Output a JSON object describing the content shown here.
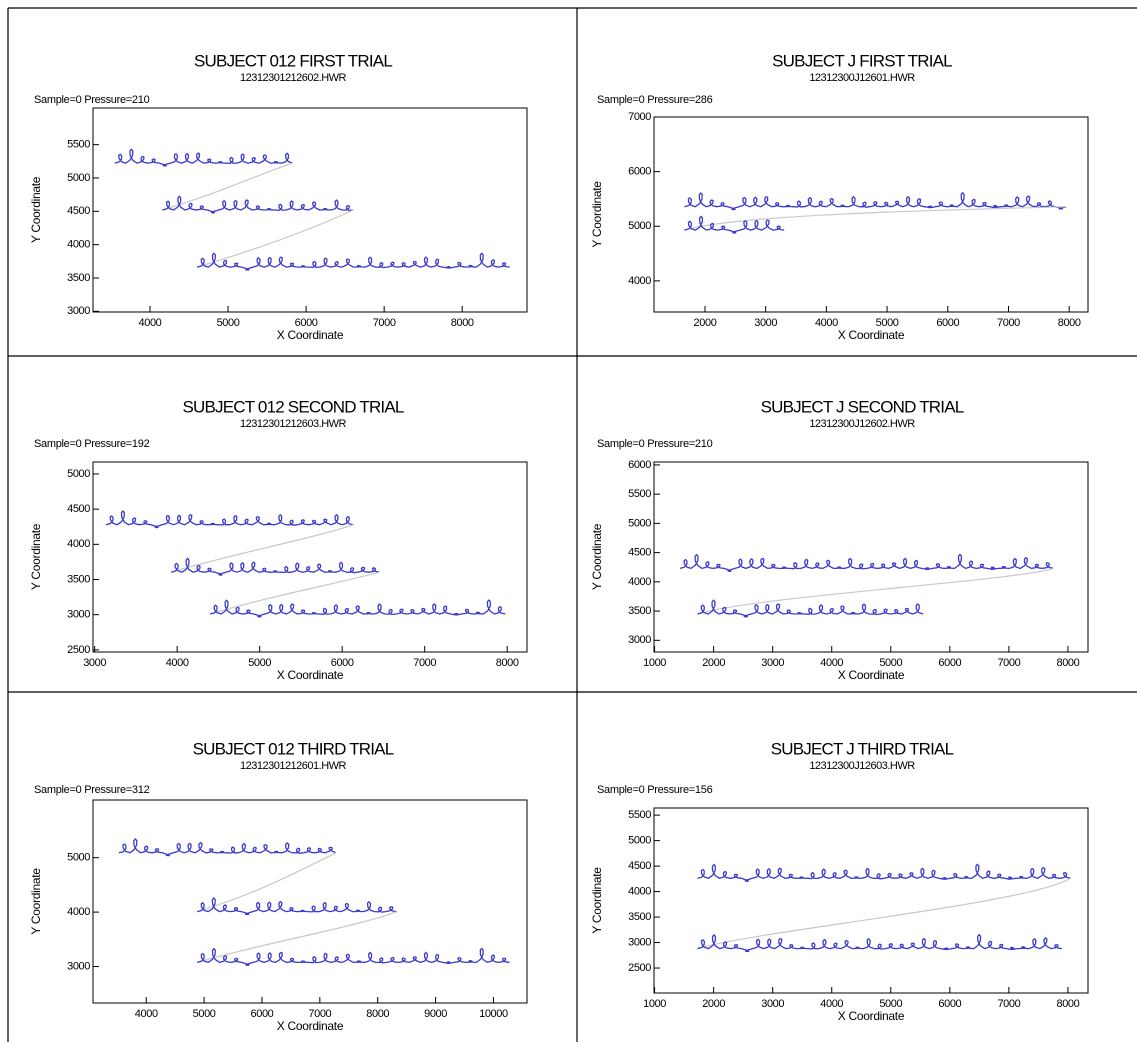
{
  "chart_data": [
    {
      "type": "line",
      "title": "SUBJECT 012 FIRST TRIAL",
      "subtitle": "12312301212602.HWR",
      "annotation": "Sample=0 Pressure=210",
      "x_label": "X Coordinate",
      "y_label": "Y Coordinate",
      "xlim": [
        3270,
        8830
      ],
      "ylim": [
        2990,
        6050
      ],
      "xticks": [
        4000,
        5000,
        6000,
        7000,
        8000
      ],
      "yticks": [
        3000,
        3500,
        4000,
        4500,
        5000,
        5500
      ],
      "color": "#3a3acc"
    },
    {
      "type": "line",
      "title": "SUBJECT J FIRST TRIAL",
      "subtitle": "12312300J12601.HWR",
      "annotation": "Sample=0 Pressure=286",
      "x_label": "X Coordinate",
      "y_label": "Y Coordinate",
      "xlim": [
        1160,
        8310
      ],
      "ylim": [
        3430,
        7000
      ],
      "xticks": [
        2000,
        3000,
        4000,
        5000,
        6000,
        7000,
        8000
      ],
      "yticks": [
        4000,
        5000,
        6000,
        7000
      ],
      "color": "#3a3acc"
    },
    {
      "type": "line",
      "title": "SUBJECT 012 SECOND TRIAL",
      "subtitle": "12312301212603.HWR",
      "annotation": "Sample=0 Pressure=192",
      "x_label": "X Coordinate",
      "y_label": "Y Coordinate",
      "xlim": [
        2980,
        8240
      ],
      "ylim": [
        2470,
        5170
      ],
      "xticks": [
        3000,
        4000,
        5000,
        6000,
        7000,
        8000
      ],
      "yticks": [
        2500,
        3000,
        3500,
        4000,
        4500,
        5000
      ],
      "color": "#3a3acc"
    },
    {
      "type": "line",
      "title": "SUBJECT J SECOND TRIAL",
      "subtitle": "12312300J12602.HWR",
      "annotation": "Sample=0 Pressure=210",
      "x_label": "X Coordinate",
      "y_label": "Y Coordinate",
      "xlim": [
        990,
        8340
      ],
      "ylim": [
        2800,
        6050
      ],
      "xticks": [
        1000,
        2000,
        3000,
        4000,
        5000,
        6000,
        7000,
        8000
      ],
      "yticks": [
        3000,
        3500,
        4000,
        4500,
        5000,
        5500,
        6000
      ],
      "color": "#3a3acc"
    },
    {
      "type": "line",
      "title": "SUBJECT 012 THIRD TRIAL",
      "subtitle": "12312301212601.HWR",
      "annotation": "Sample=0 Pressure=312",
      "x_label": "X Coordinate",
      "y_label": "Y Coordinate",
      "xlim": [
        3080,
        10580
      ],
      "ylim": [
        2330,
        6060
      ],
      "xticks": [
        4000,
        5000,
        6000,
        7000,
        8000,
        9000,
        10000
      ],
      "yticks": [
        3000,
        4000,
        5000
      ],
      "color": "#3a3acc"
    },
    {
      "type": "line",
      "title": "SUBJECT J THIRD TRIAL",
      "subtitle": "12312300J12603.HWR",
      "annotation": "Sample=0 Pressure=156",
      "x_label": "X Coordinate",
      "y_label": "Y Coordinate",
      "xlim": [
        990,
        8340
      ],
      "ylim": [
        2010,
        5640
      ],
      "xticks": [
        1000,
        2000,
        3000,
        4000,
        5000,
        6000,
        7000,
        8000
      ],
      "yticks": [
        2500,
        3000,
        3500,
        4000,
        4500,
        5000,
        5500
      ],
      "color": "#3a3acc"
    }
  ]
}
